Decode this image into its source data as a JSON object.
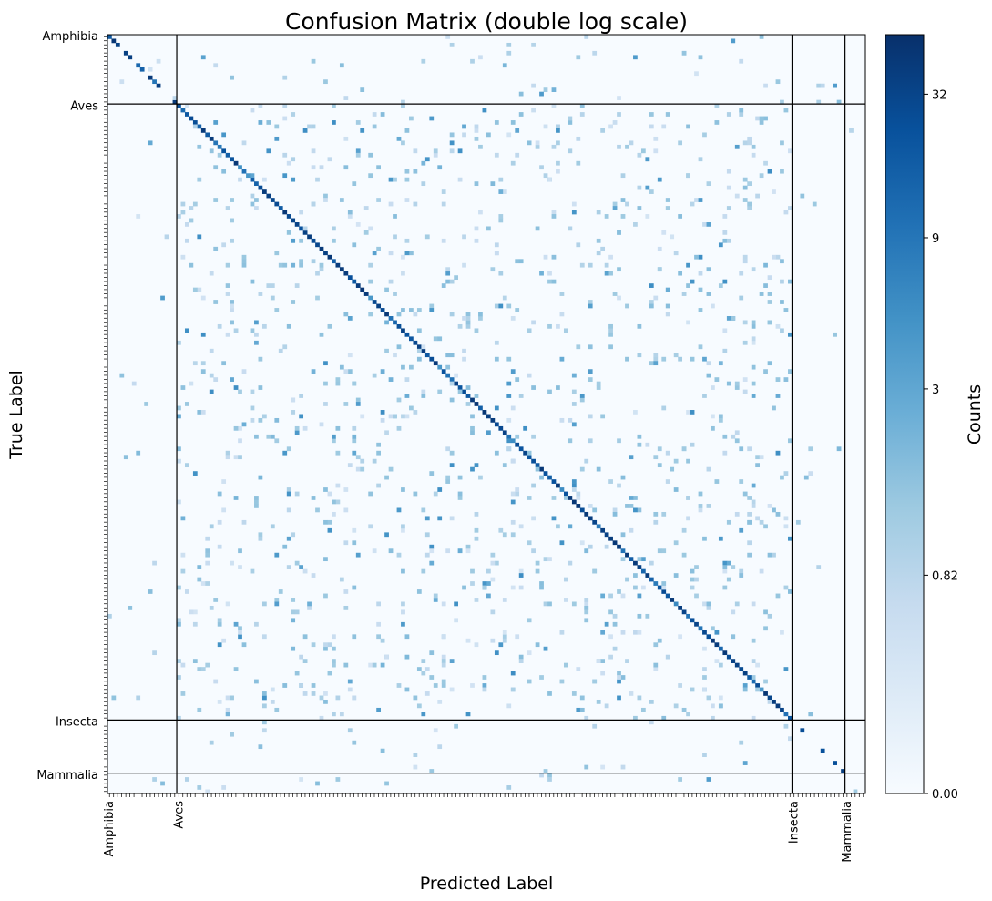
{
  "chart_data": {
    "type": "heatmap",
    "title": "Confusion Matrix (double log scale)",
    "xlabel": "Predicted Label",
    "ylabel": "True Label",
    "n_classes": 186,
    "groups": [
      {
        "name": "Amphibia",
        "start": 0,
        "size": 17
      },
      {
        "name": "Aves",
        "start": 17,
        "size": 151
      },
      {
        "name": "Insecta",
        "start": 168,
        "size": 13
      },
      {
        "name": "Mammalia",
        "start": 181,
        "size": 5
      }
    ],
    "colorbar": {
      "label": "Counts",
      "scale": "double log",
      "range": [
        0,
        60
      ],
      "ticks": [
        {
          "label": "0.00",
          "value": 0
        },
        {
          "label": "0.82",
          "value": 0.82
        },
        {
          "label": "3",
          "value": 3
        },
        {
          "label": "9",
          "value": 9
        },
        {
          "label": "32",
          "value": 32
        }
      ]
    },
    "diagonal_description": "Strong diagonal: most classes correctly predicted with counts roughly 9-50; sparse off-diagonal confusions mostly 0.5-3."
  }
}
